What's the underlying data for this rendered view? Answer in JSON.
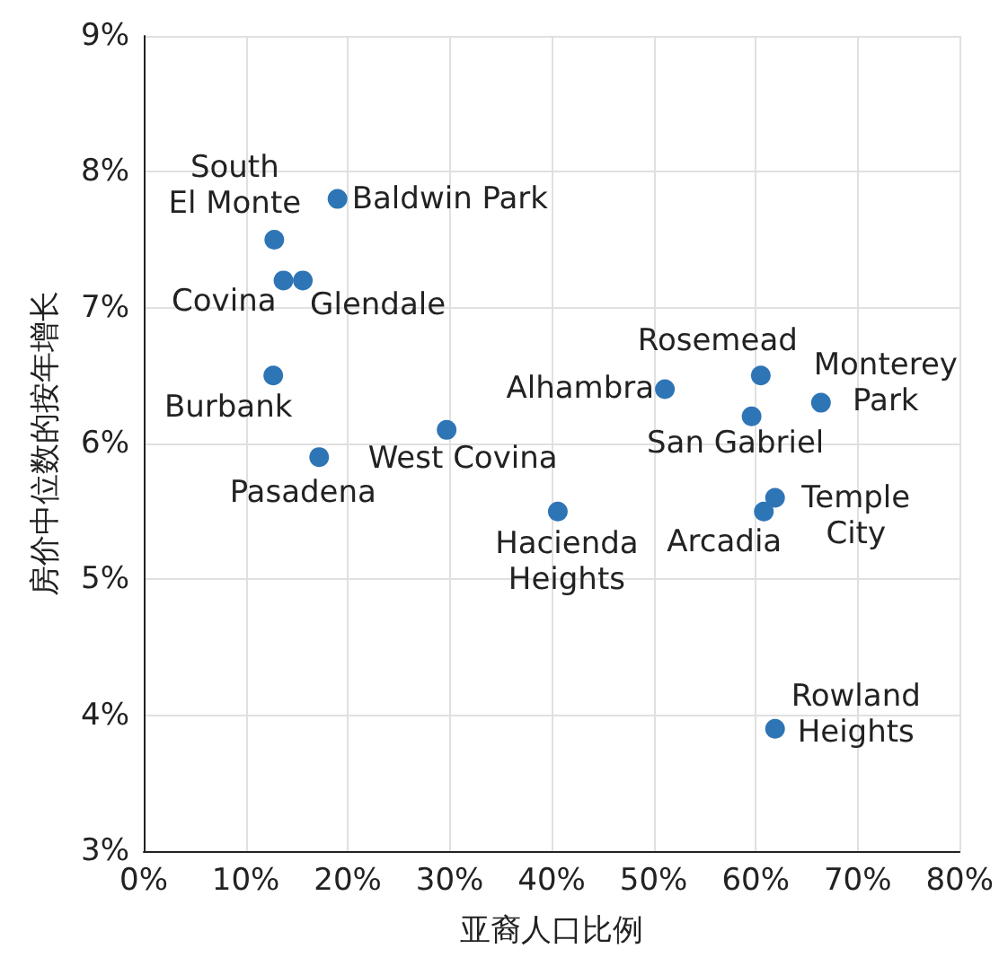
{
  "chart_data": {
    "type": "scatter",
    "xlabel": "亚裔人口比例",
    "ylabel": "房价中位数的按年增长",
    "x": [
      12.8,
      19.0,
      13.7,
      15.6,
      12.7,
      17.2,
      29.7,
      40.6,
      51.1,
      60.5,
      59.6,
      66.4,
      61.9,
      60.8,
      61.9
    ],
    "series": [
      {
        "color": "#2e75b6",
        "values": [
          7.5,
          7.8,
          7.2,
          7.2,
          6.5,
          5.9,
          6.1,
          5.5,
          6.4,
          6.5,
          6.2,
          6.3,
          5.6,
          5.5,
          3.9
        ]
      }
    ],
    "annotations": [
      {
        "text": "South\nEl Monte",
        "x": 12.8,
        "y": 7.5
      },
      {
        "text": "Baldwin Park",
        "x": 19.0,
        "y": 7.8
      },
      {
        "text": "Covina",
        "x": 13.7,
        "y": 7.2
      },
      {
        "text": "Glendale",
        "x": 15.6,
        "y": 7.2
      },
      {
        "text": "Burbank",
        "x": 12.7,
        "y": 6.5
      },
      {
        "text": "Pasadena",
        "x": 17.2,
        "y": 5.9
      },
      {
        "text": "West Covina",
        "x": 29.7,
        "y": 6.1
      },
      {
        "text": "Hacienda\nHeights",
        "x": 40.6,
        "y": 5.5
      },
      {
        "text": "Alhambra",
        "x": 51.1,
        "y": 6.4
      },
      {
        "text": "Rosemead",
        "x": 60.5,
        "y": 6.5
      },
      {
        "text": "San Gabriel",
        "x": 59.6,
        "y": 6.2
      },
      {
        "text": "Monterey\nPark",
        "x": 66.4,
        "y": 6.3
      },
      {
        "text": "Temple\nCity",
        "x": 61.9,
        "y": 5.6
      },
      {
        "text": "Arcadia",
        "x": 60.8,
        "y": 5.5
      },
      {
        "text": "Rowland\nHeights",
        "x": 61.9,
        "y": 3.9
      }
    ],
    "xlim": [
      0,
      80
    ],
    "xticks": [
      {
        "value": 0,
        "label": "0%"
      },
      {
        "value": 10,
        "label": "10%"
      },
      {
        "value": 20,
        "label": "20%"
      },
      {
        "value": 30,
        "label": "30%"
      },
      {
        "value": 40,
        "label": "40%"
      },
      {
        "value": 50,
        "label": "50%"
      },
      {
        "value": 60,
        "label": "60%"
      },
      {
        "value": 70,
        "label": "70%"
      },
      {
        "value": 80,
        "label": "80%"
      }
    ],
    "ylim": [
      3,
      9
    ],
    "yticks": [
      {
        "value": 3,
        "label": "3%"
      },
      {
        "value": 4,
        "label": "4%"
      },
      {
        "value": 5,
        "label": "5%"
      },
      {
        "value": 6,
        "label": "6%"
      },
      {
        "value": 7,
        "label": "7%"
      },
      {
        "value": 8,
        "label": "8%"
      },
      {
        "value": 9,
        "label": "9%"
      }
    ],
    "grid": true,
    "marker": "circle"
  }
}
